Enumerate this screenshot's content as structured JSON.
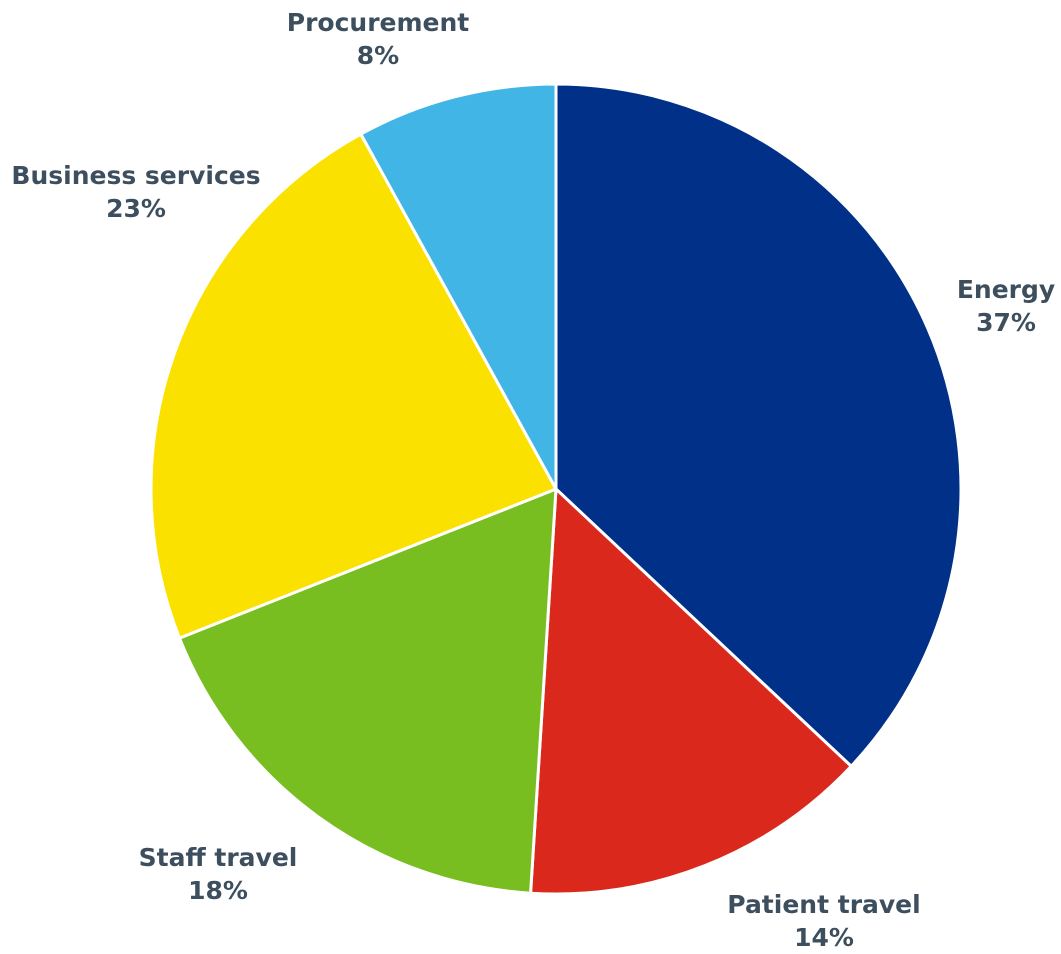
{
  "chart_data": {
    "type": "pie",
    "start_angle_deg": 0,
    "direction": "clockwise",
    "slices": [
      {
        "label": "Energy",
        "value": 37,
        "value_label": "37%",
        "color": "#003087"
      },
      {
        "label": "Patient travel",
        "value": 14,
        "value_label": "14%",
        "color": "#da291c"
      },
      {
        "label": "Staff travel",
        "value": 18,
        "value_label": "18%",
        "color": "#78be20"
      },
      {
        "label": "Business services",
        "value": 23,
        "value_label": "23%",
        "color": "#fae100"
      },
      {
        "label": "Procurement",
        "value": 8,
        "value_label": "8%",
        "color": "#41b6e6"
      }
    ]
  }
}
